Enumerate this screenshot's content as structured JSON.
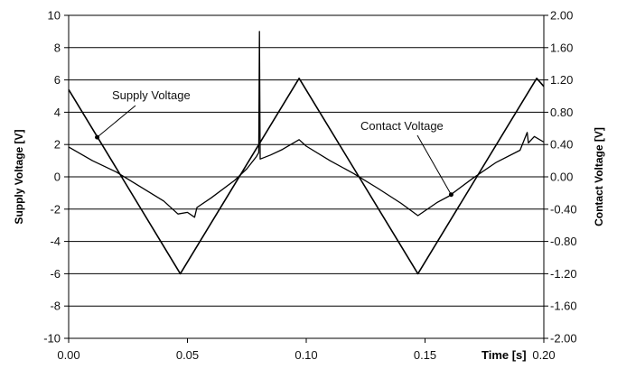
{
  "chart_data": {
    "type": "line",
    "xlabel": "Time [s]",
    "ylabel_left": "Supply Voltage [V]",
    "ylabel_right": "Contact Voltage [V]",
    "xlim": [
      0,
      0.2
    ],
    "ylim_left": [
      -10,
      10
    ],
    "ylim_right": [
      -2,
      2
    ],
    "grid": "horizontal",
    "x_ticks": [
      "0.00",
      "0.05",
      "0.10",
      "0.15",
      "0.20"
    ],
    "y_ticks_left": [
      "10",
      "8",
      "6",
      "4",
      "2",
      "0",
      "-2",
      "-4",
      "-6",
      "-8",
      "-10"
    ],
    "y_ticks_right": [
      "2.00",
      "1.60",
      "1.20",
      "0.80",
      "0.40",
      "0.00",
      "-0.40",
      "-0.80",
      "-1.20",
      "-1.60",
      "-2.00"
    ],
    "series": [
      {
        "name": "Supply Voltage",
        "axis": "left",
        "points": [
          [
            0.0,
            5.4
          ],
          [
            0.047,
            -6.0
          ],
          [
            0.097,
            6.1
          ],
          [
            0.147,
            -6.0
          ],
          [
            0.197,
            6.1
          ],
          [
            0.2,
            5.6
          ]
        ]
      },
      {
        "name": "Contact Voltage",
        "axis": "right",
        "points": [
          [
            0.0,
            0.37
          ],
          [
            0.01,
            0.2
          ],
          [
            0.02,
            0.06
          ],
          [
            0.03,
            -0.12
          ],
          [
            0.04,
            -0.3
          ],
          [
            0.046,
            -0.46
          ],
          [
            0.05,
            -0.44
          ],
          [
            0.053,
            -0.5
          ],
          [
            0.054,
            -0.38
          ],
          [
            0.06,
            -0.26
          ],
          [
            0.07,
            -0.04
          ],
          [
            0.075,
            0.1
          ],
          [
            0.079,
            0.25
          ],
          [
            0.08,
            0.3
          ],
          [
            0.0803,
            1.8
          ],
          [
            0.0806,
            0.22
          ],
          [
            0.085,
            0.27
          ],
          [
            0.09,
            0.34
          ],
          [
            0.097,
            0.46
          ],
          [
            0.1,
            0.38
          ],
          [
            0.11,
            0.2
          ],
          [
            0.12,
            0.04
          ],
          [
            0.13,
            -0.14
          ],
          [
            0.14,
            -0.33
          ],
          [
            0.147,
            -0.48
          ],
          [
            0.155,
            -0.32
          ],
          [
            0.16,
            -0.24
          ],
          [
            0.17,
            -0.02
          ],
          [
            0.18,
            0.18
          ],
          [
            0.19,
            0.33
          ],
          [
            0.193,
            0.55
          ],
          [
            0.1935,
            0.42
          ],
          [
            0.196,
            0.5
          ],
          [
            0.2,
            0.43
          ]
        ]
      }
    ],
    "annotations": [
      {
        "text": "Supply Voltage",
        "series": 0,
        "x": 0.012,
        "y": 2.45,
        "axis": "left"
      },
      {
        "text": "Contact Voltage",
        "series": 1,
        "x": 0.161,
        "y": -0.22,
        "axis": "right"
      }
    ]
  }
}
